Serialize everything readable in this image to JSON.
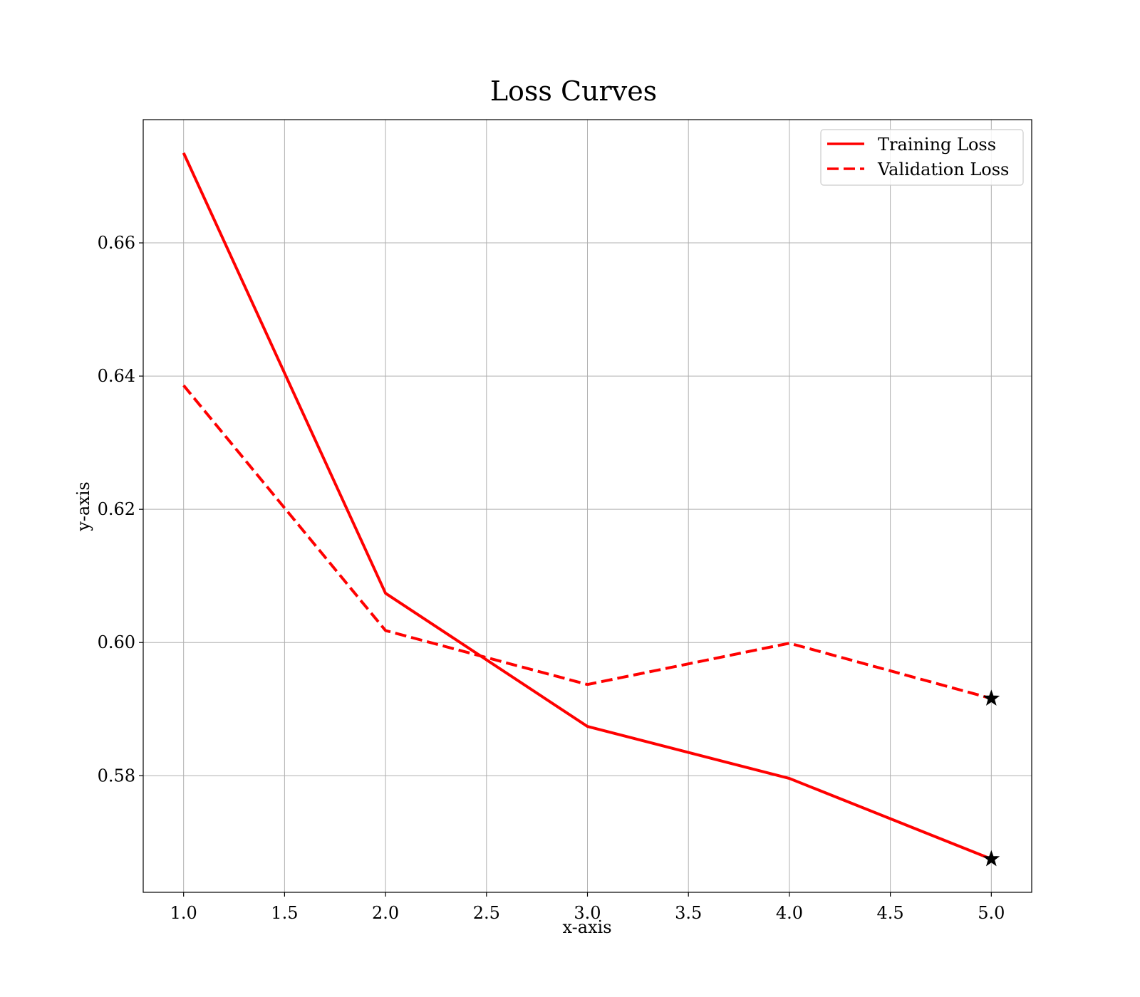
{
  "chart_data": {
    "type": "line",
    "title": "Loss Curves",
    "xlabel": "x-axis",
    "ylabel": "y-axis",
    "x": [
      1,
      2,
      3,
      4,
      5
    ],
    "xlim": [
      0.8,
      5.2
    ],
    "ylim": [
      0.5625,
      0.6785
    ],
    "xticks": [
      "1.0",
      "1.5",
      "2.0",
      "2.5",
      "3.0",
      "3.5",
      "4.0",
      "4.5",
      "5.0"
    ],
    "xtick_values": [
      1.0,
      1.5,
      2.0,
      2.5,
      3.0,
      3.5,
      4.0,
      4.5,
      5.0
    ],
    "yticks": [
      "0.58",
      "0.60",
      "0.62",
      "0.64",
      "0.66"
    ],
    "ytick_values": [
      0.58,
      0.6,
      0.62,
      0.64,
      0.66
    ],
    "grid": true,
    "legend_position": "top-right",
    "series": [
      {
        "name": "Training Loss",
        "values": [
          0.6735,
          0.6074,
          0.5874,
          0.5796,
          0.5675
        ],
        "color": "#ff0000",
        "style": "solid",
        "end_marker": "star"
      },
      {
        "name": "Validation Loss",
        "values": [
          0.6386,
          0.6018,
          0.5937,
          0.5999,
          0.5916
        ],
        "color": "#ff0000",
        "style": "dashed",
        "end_marker": "star"
      }
    ]
  }
}
